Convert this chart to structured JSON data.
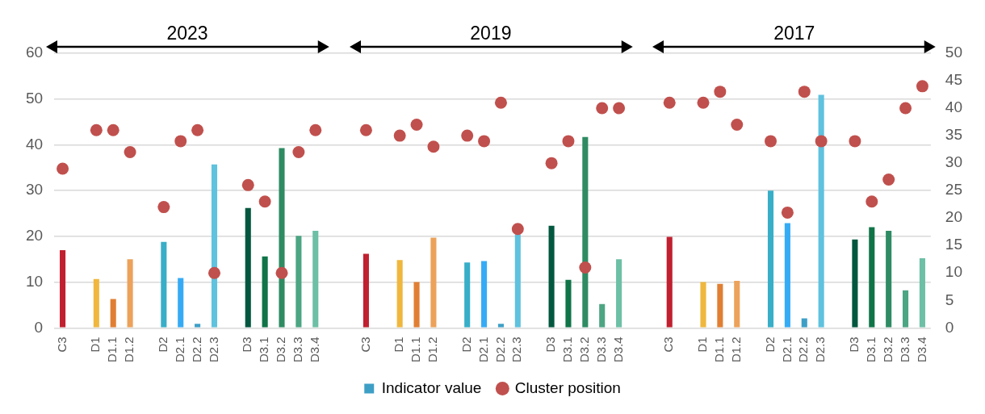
{
  "chart_data": {
    "type": "bar",
    "categories": [
      "C3",
      null,
      "D1",
      "D1.1",
      "D1.2",
      null,
      "D2",
      "D2.1",
      "D2.2",
      "D2.3",
      null,
      "D3",
      "D3.1",
      "D3.2",
      "D3.3",
      "D3.4",
      null,
      null,
      "C3",
      null,
      "D1",
      "D1.1",
      "D1.2",
      null,
      "D2",
      "D2.1",
      "D2.2",
      "D2.3",
      null,
      "D3",
      "D3.1",
      "D3.2",
      "D3.3",
      "D3.4",
      null,
      null,
      "C3",
      null,
      "D1",
      "D1.1",
      "D1.2",
      null,
      "D2",
      "D2.1",
      "D2.2",
      "D2.3",
      null,
      "D3",
      "D3.1",
      "D3.2",
      "D3.3",
      "D3.4"
    ],
    "series": [
      {
        "name": "Indicator value",
        "color": "#3e9fc6",
        "colors": [
          "#c0202f",
          null,
          "#efb73e",
          "#e07f33",
          "#eca25a",
          null,
          "#38aec8",
          "#36abf5",
          "#3e9fc6",
          "#5fc2de",
          null,
          "#03573f",
          "#0f7447",
          "#2e8b62",
          "#4ca583",
          "#6dbfa5",
          null,
          null,
          "#c0202f",
          null,
          "#efb73e",
          "#e07f33",
          "#eca25a",
          null,
          "#38aec8",
          "#36abf5",
          "#3e9fc6",
          "#5fc2de",
          null,
          "#03573f",
          "#0f7447",
          "#2e8b62",
          "#4ca583",
          "#6dbfa5",
          null,
          null,
          "#c0202f",
          null,
          "#efb73e",
          "#e07f33",
          "#eca25a",
          null,
          "#38aec8",
          "#36abf5",
          "#3e9fc6",
          "#5fc2de",
          null,
          "#03573f",
          "#0f7447",
          "#2e8b62",
          "#4ca583",
          "#6dbfa5"
        ],
        "values": [
          17,
          null,
          10.7,
          6.3,
          15,
          null,
          18.8,
          10.9,
          0.9,
          35.7,
          null,
          26.2,
          15.6,
          39.3,
          20.1,
          21.2,
          null,
          null,
          16.2,
          null,
          14.8,
          10,
          19.7,
          null,
          14.3,
          14.6,
          0.9,
          20.4,
          null,
          22.3,
          10.5,
          41.7,
          5.2,
          15,
          null,
          null,
          19.9,
          null,
          10,
          9.6,
          10.3,
          null,
          30,
          22.9,
          2.1,
          50.9,
          null,
          19.3,
          22,
          21.2,
          8.2,
          15.2
        ]
      },
      {
        "name": "Cluster position",
        "type": "scatter",
        "axis": "y2",
        "color": "#c0504d",
        "values": [
          29,
          null,
          36,
          36,
          32,
          null,
          22,
          34,
          36,
          10,
          null,
          26,
          23,
          10,
          32,
          36,
          null,
          null,
          36,
          null,
          35,
          37,
          33,
          null,
          35,
          34,
          41,
          18,
          null,
          30,
          34,
          11,
          40,
          40,
          null,
          null,
          41,
          null,
          41,
          43,
          37,
          null,
          34,
          21,
          43,
          34,
          null,
          34,
          23,
          27,
          40,
          44
        ]
      }
    ],
    "ylim": [
      0,
      60
    ],
    "yticks": [
      0,
      10,
      20,
      30,
      40,
      50,
      60
    ],
    "y2lim": [
      0,
      50
    ],
    "y2ticks": [
      0,
      5,
      10,
      15,
      20,
      25,
      30,
      35,
      40,
      45,
      50
    ],
    "grid": "y",
    "legend": "bottom",
    "marker": "circle",
    "annotations": [
      "2023",
      "2019",
      "2017"
    ]
  }
}
